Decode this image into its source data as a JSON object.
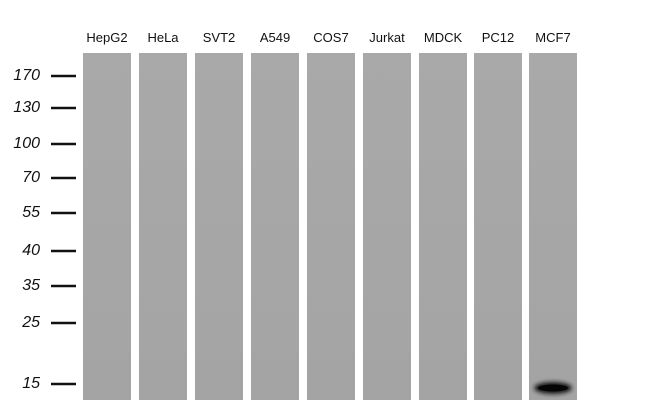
{
  "lanes": [
    "HepG2",
    "HeLa",
    "SVT2",
    "A549",
    "COS7",
    "Jurkat",
    "MDCK",
    "PC12",
    "MCF7"
  ],
  "markers": [
    "170",
    "130",
    "100",
    "70",
    "55",
    "40",
    "35",
    "25",
    "15"
  ]
}
